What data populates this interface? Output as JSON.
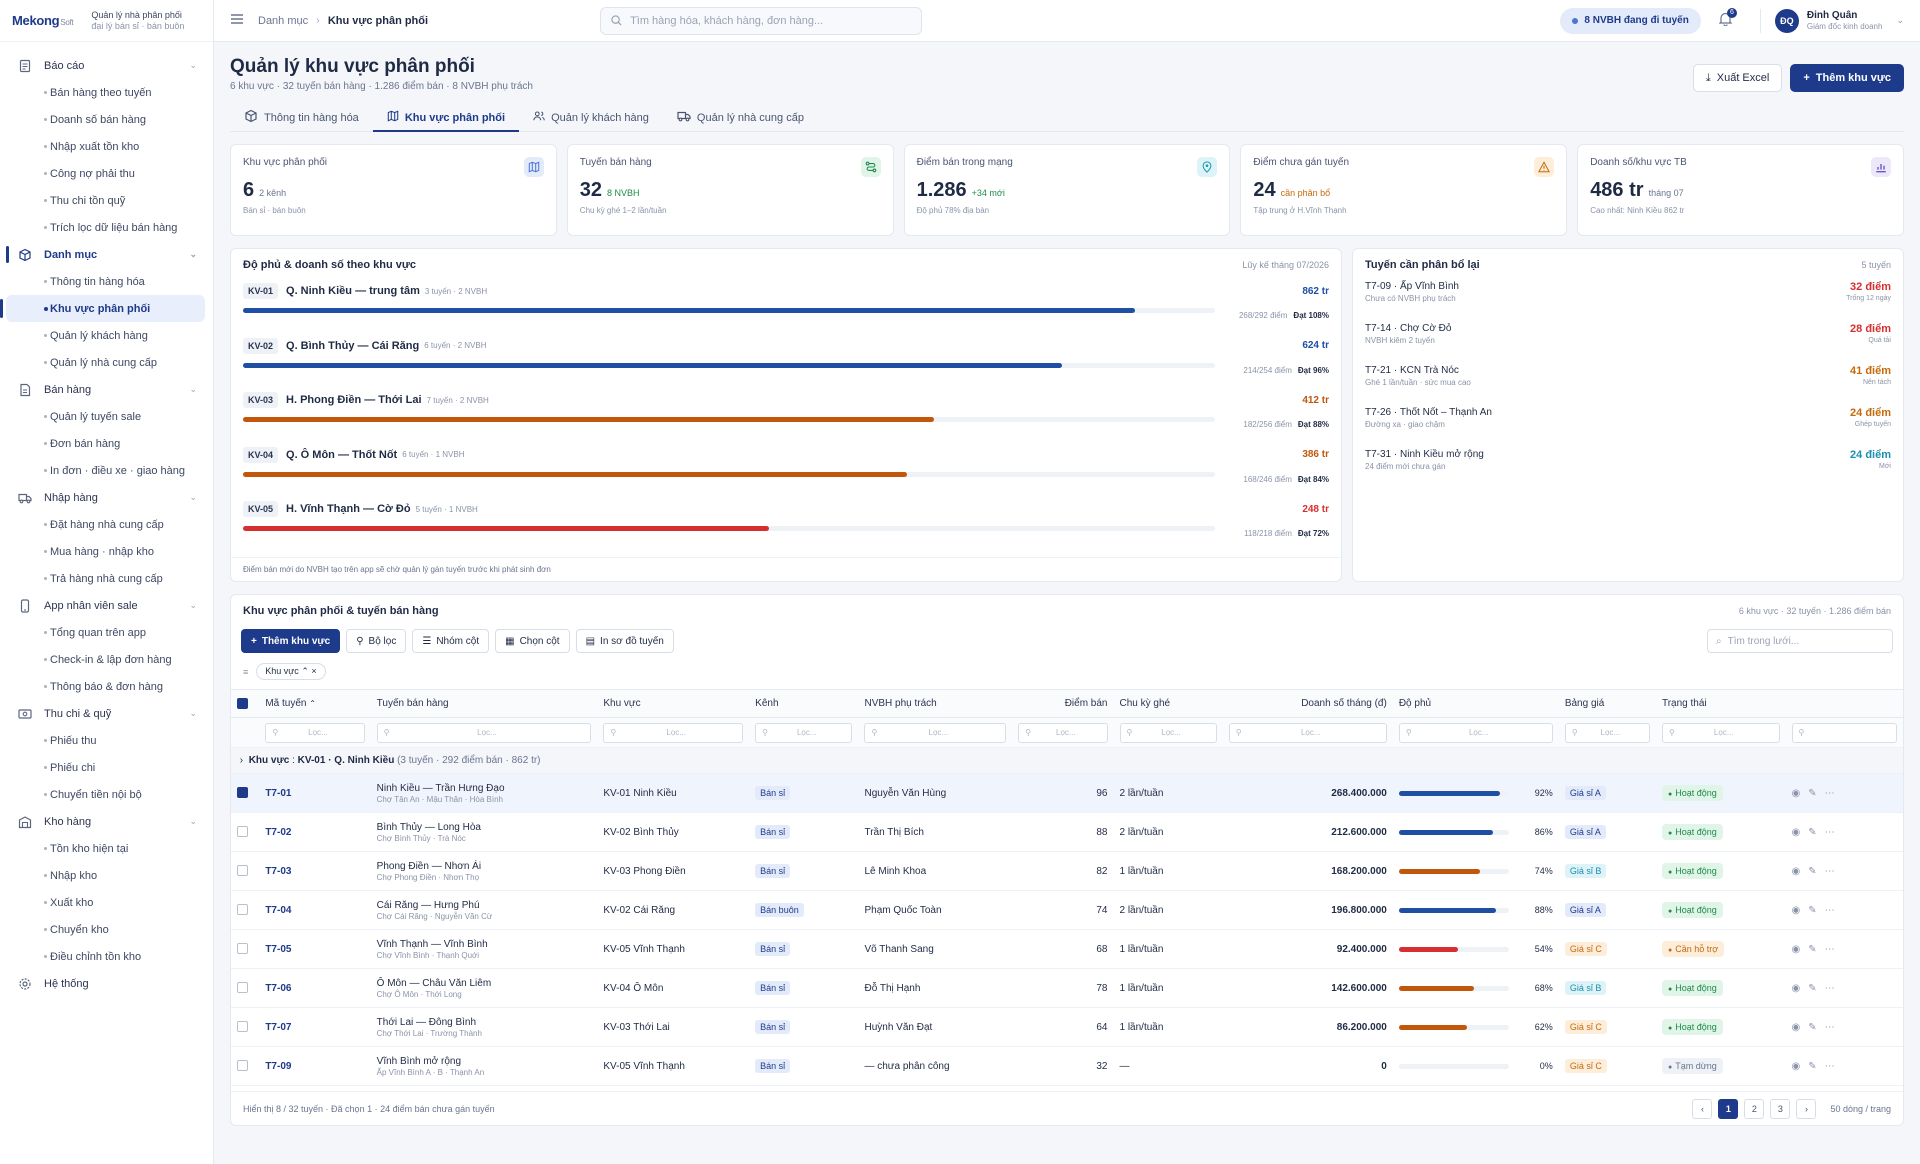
{
  "brand": {
    "logo": "Mekong",
    "logo_suffix": "Soft",
    "line1": "Quản lý nhà phân phối",
    "line2": "đại lý bán sỉ · bán buôn"
  },
  "sidebar": {
    "groups": [
      {
        "label": "Báo cáo",
        "icon": "report-icon",
        "items": [
          "Bán hàng theo tuyến",
          "Doanh số bán hàng",
          "Nhập xuất tồn kho",
          "Công nợ phải thu",
          "Thu chi tồn quỹ",
          "Trích lọc dữ liệu bán hàng"
        ]
      },
      {
        "label": "Danh mục",
        "icon": "box-icon",
        "active": true,
        "items": [
          "Thông tin hàng hóa",
          "Khu vực phân phối",
          "Quản lý khách hàng",
          "Quản lý nhà cung cấp"
        ],
        "active_item": 1
      },
      {
        "label": "Bán hàng",
        "icon": "document-icon",
        "items": [
          "Quản lý tuyến sale",
          "Đơn bán hàng",
          "In đơn · điều xe · giao hàng"
        ]
      },
      {
        "label": "Nhập hàng",
        "icon": "truck-icon",
        "items": [
          "Đặt hàng nhà cung cấp",
          "Mua hàng · nhập kho",
          "Trả hàng nhà cung cấp"
        ]
      },
      {
        "label": "App nhân viên sale",
        "icon": "phone-icon",
        "items": [
          "Tổng quan trên app",
          "Check-in & lập đơn hàng",
          "Thông báo & đơn hàng"
        ]
      },
      {
        "label": "Thu chi & quỹ",
        "icon": "cash-icon",
        "items": [
          "Phiếu thu",
          "Phiếu chi",
          "Chuyển tiền nội bộ"
        ]
      },
      {
        "label": "Kho hàng",
        "icon": "warehouse-icon",
        "items": [
          "Tồn kho hiện tại",
          "Nhập kho",
          "Xuất kho",
          "Chuyển kho",
          "Điều chỉnh tồn kho"
        ]
      },
      {
        "label": "Hệ thống",
        "icon": "gear-icon",
        "items": []
      }
    ]
  },
  "topbar": {
    "crumb_parent": "Danh mục",
    "crumb_current": "Khu vực phân phối",
    "search_placeholder": "Tìm hàng hóa, khách hàng, đơn hàng...",
    "status_pill": "8 NVBH đang đi tuyến",
    "bell_count": "6",
    "user_initials": "ĐQ",
    "user_name": "Đinh Quân",
    "user_role": "Giám đốc kinh doanh"
  },
  "page": {
    "title": "Quản lý khu vực phân phối",
    "subtitle": "6 khu vực · 32 tuyến bán hàng · 1.286 điểm bán · 8 NVBH phụ trách",
    "export_label": "Xuất Excel",
    "add_label": "Thêm khu vực"
  },
  "tabs": [
    {
      "label": "Thông tin hàng hóa",
      "icon": "box-icon"
    },
    {
      "label": "Khu vực phân phối",
      "icon": "map-icon",
      "active": true
    },
    {
      "label": "Quản lý khách hàng",
      "icon": "users-icon"
    },
    {
      "label": "Quản lý nhà cung cấp",
      "icon": "truck-icon"
    }
  ],
  "kpis": [
    {
      "label": "Khu vực phân phối",
      "value": "6",
      "suffix": "2 kênh",
      "note": "Bán sỉ · bán buôn",
      "icon": "map-icon",
      "color": "#4b74d6",
      "bg": "#e3ebfb",
      "suffix_tone": ""
    },
    {
      "label": "Tuyến bán hàng",
      "value": "32",
      "suffix": "8 NVBH",
      "note": "Chu kỳ ghé 1–2 lần/tuần",
      "icon": "route-icon",
      "color": "#1f8a4c",
      "bg": "#e1f4e8",
      "suffix_tone": "g"
    },
    {
      "label": "Điểm bán trong mạng",
      "value": "1.286",
      "suffix": "+34 mới",
      "note": "Độ phủ 78% địa bàn",
      "icon": "pin-icon",
      "color": "#1a9bb3",
      "bg": "#def3f7",
      "suffix_tone": "g"
    },
    {
      "label": "Điểm chưa gán tuyến",
      "value": "24",
      "suffix": "cần phân bổ",
      "note": "Tập trung ở H.Vĩnh Thạnh",
      "icon": "warning-icon",
      "color": "#c56a0a",
      "bg": "#fdeedb",
      "suffix_tone": "o"
    },
    {
      "label": "Doanh số/khu vực TB",
      "value": "486 tr",
      "suffix": "tháng 07",
      "note": "Cao nhất: Ninh Kiều 862 tr",
      "icon": "chart-icon",
      "color": "#6a55c8",
      "bg": "#ece8fa",
      "suffix_tone": ""
    }
  ],
  "coverage": {
    "title": "Độ phủ & doanh số theo khu vực",
    "period": "Lũy kế tháng 07/2026",
    "note": "Điểm bán mới do NVBH tạo trên app sẽ chờ quản lý gán tuyến trước khi phát sinh đơn",
    "regions": [
      {
        "code": "KV-01",
        "name": "Q. Ninh Kiều — trung tâm",
        "meta": "3 tuyến · 2 NVBH",
        "revenue": "862 tr",
        "points": "268/292 điểm",
        "target": "Đạt 108%",
        "fill": 0.918,
        "color": "#1e4fa3"
      },
      {
        "code": "KV-02",
        "name": "Q. Bình Thủy — Cái Răng",
        "meta": "6 tuyến · 2 NVBH",
        "revenue": "624 tr",
        "points": "214/254 điểm",
        "target": "Đạt 96%",
        "fill": 0.843,
        "color": "#1e4fa3"
      },
      {
        "code": "KV-03",
        "name": "H. Phong Điền — Thới Lai",
        "meta": "7 tuyến · 2 NVBH",
        "revenue": "412 tr",
        "points": "182/256 điểm",
        "target": "Đạt 88%",
        "fill": 0.711,
        "color": "#c2570c"
      },
      {
        "code": "KV-04",
        "name": "Q. Ô Môn — Thốt Nốt",
        "meta": "6 tuyến · 1 NVBH",
        "revenue": "386 tr",
        "points": "168/246 điểm",
        "target": "Đạt 84%",
        "fill": 0.683,
        "color": "#c2570c"
      },
      {
        "code": "KV-05",
        "name": "H. Vĩnh Thạnh — Cờ Đỏ",
        "meta": "5 tuyến · 1 NVBH",
        "revenue": "248 tr",
        "points": "118/218 điểm",
        "target": "Đạt 72%",
        "fill": 0.541,
        "color": "#d62f2f"
      }
    ]
  },
  "realloc": {
    "title": "Tuyến cần phân bổ lại",
    "count": "5 tuyến",
    "items": [
      {
        "title": "T7-09 · Ấp Vĩnh Bình",
        "sub": "Chưa có NVBH phụ trách",
        "value": "32 điểm",
        "note": "Trống 12 ngày",
        "color": "#d62f2f"
      },
      {
        "title": "T7-14 · Chợ Cờ Đỏ",
        "sub": "NVBH kiêm 2 tuyến",
        "value": "28 điểm",
        "note": "Quá tải",
        "color": "#d62f2f"
      },
      {
        "title": "T7-21 · KCN Trà Nóc",
        "sub": "Ghé 1 lần/tuần · sức mua cao",
        "value": "41 điểm",
        "note": "Nên tách",
        "color": "#c56a0a"
      },
      {
        "title": "T7-26 · Thốt Nốt – Thạnh An",
        "sub": "Đường xa · giao chậm",
        "value": "24 điểm",
        "note": "Ghép tuyến",
        "color": "#c56a0a"
      },
      {
        "title": "T7-31 · Ninh Kiều mở rộng",
        "sub": "24 điểm mới chưa gán",
        "value": "24 điểm",
        "note": "Mới",
        "color": "#1a8fb0"
      }
    ]
  },
  "grid": {
    "title": "Khu vực phân phối & tuyến bán hàng",
    "summary": "6 khu vực · 32 tuyến · 1.286 điểm bán",
    "toolbar": {
      "add": "Thêm khu vực",
      "filter": "Bộ lọc",
      "group": "Nhóm cột",
      "columns": "Chọn cột",
      "map": "In sơ đồ tuyến",
      "search_placeholder": "Tìm trong lưới..."
    },
    "chip": "Khu vực",
    "filter_placeholder": "Lọc...",
    "columns": [
      "Mã tuyến",
      "Tuyến bán hàng",
      "Khu vực",
      "Kênh",
      "NVBH phụ trách",
      "Điểm bán",
      "Chu kỳ ghé",
      "Doanh số tháng (đ)",
      "Độ phủ",
      "Bảng giá",
      "Trạng thái"
    ],
    "group_row": {
      "label": "Khu vực",
      "value": "KV-01 · Q. Ninh Kiều",
      "meta": "(3 tuyến · 292 điểm bán · 862 tr)"
    },
    "rows": [
      {
        "code": "T7-01",
        "name": "Ninh Kiều — Trần Hưng Đạo",
        "sub": "Chợ Tân An · Mậu Thân · Hòa Bình",
        "region": "KV-01 Ninh Kiều",
        "channel": "Bán sỉ",
        "rep": "Nguyễn Văn Hùng",
        "points": "96",
        "cycle": "2 lần/tuần",
        "revenue": "268.400.000",
        "cov": "92%",
        "cov_v": 0.92,
        "cov_c": "#1e4fa3",
        "price": "Giá sỉ A",
        "price_bg": "#e3ebfb",
        "price_c": "#1e3a8a",
        "status": "Hoạt động",
        "st_bg": "#e1f4e8",
        "st_c": "#1f8a4c",
        "selected": true
      },
      {
        "code": "T7-02",
        "name": "Bình Thủy — Long Hòa",
        "sub": "Chợ Bình Thủy · Trà Nóc",
        "region": "KV-02 Bình Thủy",
        "channel": "Bán sỉ",
        "rep": "Trần Thị Bích",
        "points": "88",
        "cycle": "2 lần/tuần",
        "revenue": "212.600.000",
        "cov": "86%",
        "cov_v": 0.86,
        "cov_c": "#1e4fa3",
        "price": "Giá sỉ A",
        "price_bg": "#e3ebfb",
        "price_c": "#1e3a8a",
        "status": "Hoạt động",
        "st_bg": "#e1f4e8",
        "st_c": "#1f8a4c"
      },
      {
        "code": "T7-03",
        "name": "Phong Điền — Nhơn Ái",
        "sub": "Chợ Phong Điền · Nhơn Thọ",
        "region": "KV-03 Phong Điền",
        "channel": "Bán sỉ",
        "rep": "Lê Minh Khoa",
        "points": "82",
        "cycle": "1 lần/tuần",
        "revenue": "168.200.000",
        "cov": "74%",
        "cov_v": 0.74,
        "cov_c": "#c2570c",
        "price": "Giá sỉ B",
        "price_bg": "#def3f7",
        "price_c": "#1a8fb0",
        "status": "Hoạt động",
        "st_bg": "#e1f4e8",
        "st_c": "#1f8a4c"
      },
      {
        "code": "T7-04",
        "name": "Cái Răng — Hưng Phú",
        "sub": "Chợ Cái Răng · Nguyễn Văn Cừ",
        "region": "KV-02 Cái Răng",
        "channel": "Bán buôn",
        "rep": "Phạm Quốc Toàn",
        "points": "74",
        "cycle": "2 lần/tuần",
        "revenue": "196.800.000",
        "cov": "88%",
        "cov_v": 0.88,
        "cov_c": "#1e4fa3",
        "price": "Giá sỉ A",
        "price_bg": "#e3ebfb",
        "price_c": "#1e3a8a",
        "status": "Hoạt động",
        "st_bg": "#e1f4e8",
        "st_c": "#1f8a4c"
      },
      {
        "code": "T7-05",
        "name": "Vĩnh Thạnh — Vĩnh Bình",
        "sub": "Chợ Vĩnh Bình · Thạnh Quới",
        "region": "KV-05 Vĩnh Thạnh",
        "channel": "Bán sỉ",
        "rep": "Võ Thanh Sang",
        "points": "68",
        "cycle": "1 lần/tuần",
        "revenue": "92.400.000",
        "cov": "54%",
        "cov_v": 0.54,
        "cov_c": "#d62f2f",
        "price": "Giá sỉ C",
        "price_bg": "#fdeedb",
        "price_c": "#c56a0a",
        "status": "Cần hỗ trợ",
        "st_bg": "#fdeedb",
        "st_c": "#c56a0a"
      },
      {
        "code": "T7-06",
        "name": "Ô Môn — Châu Văn Liêm",
        "sub": "Chợ Ô Môn · Thới Long",
        "region": "KV-04 Ô Môn",
        "channel": "Bán sỉ",
        "rep": "Đỗ Thị Hạnh",
        "points": "78",
        "cycle": "1 lần/tuần",
        "revenue": "142.600.000",
        "cov": "68%",
        "cov_v": 0.68,
        "cov_c": "#c2570c",
        "price": "Giá sỉ B",
        "price_bg": "#def3f7",
        "price_c": "#1a8fb0",
        "status": "Hoạt động",
        "st_bg": "#e1f4e8",
        "st_c": "#1f8a4c"
      },
      {
        "code": "T7-07",
        "name": "Thới Lai — Đông Bình",
        "sub": "Chợ Thới Lai · Trường Thành",
        "region": "KV-03 Thới Lai",
        "channel": "Bán sỉ",
        "rep": "Huỳnh Văn Đạt",
        "points": "64",
        "cycle": "1 lần/tuần",
        "revenue": "86.200.000",
        "cov": "62%",
        "cov_v": 0.62,
        "cov_c": "#c2570c",
        "price": "Giá sỉ C",
        "price_bg": "#fdeedb",
        "price_c": "#c56a0a",
        "status": "Hoạt động",
        "st_bg": "#e1f4e8",
        "st_c": "#1f8a4c"
      },
      {
        "code": "T7-09",
        "name": "Vĩnh Bình mở rộng",
        "sub": "Ấp Vĩnh Bình A · B · Thạnh An",
        "region": "KV-05 Vĩnh Thạnh",
        "channel": "Bán sỉ",
        "rep": "— chưa phân công",
        "points": "32",
        "cycle": "—",
        "revenue": "0",
        "cov": "0%",
        "cov_v": 0,
        "cov_c": "#1e4fa3",
        "price": "Giá sỉ C",
        "price_bg": "#fdeedb",
        "price_c": "#c56a0a",
        "status": "Tạm dừng",
        "st_bg": "#eef1f5",
        "st_c": "#6a7590"
      }
    ],
    "footer": "Hiển thị 8 / 32 tuyến · Đã chọn 1 · 24 điểm bán chưa gán tuyến",
    "pages": [
      "1",
      "2",
      "3"
    ],
    "page_size": "50 dòng / trang"
  }
}
